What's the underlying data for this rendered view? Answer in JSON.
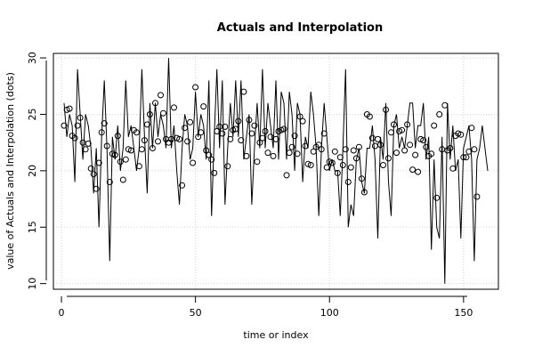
{
  "chart_data": {
    "type": "line",
    "title": "Actuals and Interpolation",
    "xlabel": "time or index",
    "ylabel": "value of Actuals and Interpolation (dots)",
    "xlim": [
      -3,
      163
    ],
    "ylim": [
      9.5,
      30.4
    ],
    "xticks": [
      0,
      50,
      100,
      150
    ],
    "yticks": [
      10,
      15,
      20,
      25,
      30
    ],
    "grid": true,
    "colors": {
      "line": "#000000",
      "points": "#000000",
      "grid": "#d3d3d3"
    },
    "series": [
      {
        "style": "line",
        "values": [
          26,
          23,
          25,
          24,
          19,
          29,
          25,
          21,
          25,
          24,
          22,
          18,
          22,
          15,
          23,
          28,
          22,
          12,
          23,
          21,
          24,
          20,
          22,
          28,
          23,
          24,
          22,
          20,
          22,
          29,
          23,
          18,
          26,
          22,
          26,
          23,
          25,
          24,
          22,
          30,
          22,
          24,
          20,
          17,
          22,
          25,
          24,
          21,
          22,
          27,
          23,
          25,
          24,
          21,
          28,
          16,
          23,
          29,
          22,
          28,
          17,
          22,
          26,
          23,
          28,
          23,
          28,
          21,
          23,
          25,
          17,
          22,
          26,
          22,
          29,
          22,
          26,
          24,
          22,
          28,
          21,
          27,
          26,
          21,
          27,
          25,
          20,
          26,
          25,
          19,
          23,
          22,
          27,
          25,
          22,
          16,
          22,
          26,
          23,
          20,
          21,
          20,
          20,
          16,
          22,
          29,
          15,
          17,
          16,
          21,
          22,
          19,
          18,
          22,
          22,
          24,
          21,
          14,
          23,
          21,
          26,
          19,
          16,
          24,
          25,
          22,
          23,
          22,
          24,
          26,
          26,
          22,
          24,
          24,
          26,
          21,
          23,
          13,
          21,
          15,
          14,
          23,
          10,
          26,
          21,
          24,
          20,
          21,
          14,
          22,
          23,
          24,
          21,
          12,
          21,
          22,
          24,
          22,
          20
        ]
      },
      {
        "style": "points",
        "values": [
          24.0,
          25.4,
          25.5,
          23.1,
          22.9,
          24.0,
          24.7,
          22.5,
          21.9,
          22.4,
          20.2,
          19.7,
          18.4,
          20.7,
          23.4,
          24.2,
          22.2,
          19.0,
          21.5,
          21.4,
          23.1,
          20.8,
          19.2,
          21.0,
          21.9,
          21.8,
          23.6,
          23.4,
          20.4,
          21.9,
          22.7,
          24.1,
          25.0,
          22.0,
          26.0,
          22.6,
          26.7,
          25.1,
          22.8,
          22.5,
          22.8,
          25.6,
          22.9,
          22.8,
          18.7,
          23.8,
          22.6,
          24.3,
          20.7,
          27.4,
          23.0,
          23.4,
          25.7,
          21.8,
          21.4,
          21.0,
          19.8,
          23.5,
          23.9,
          23.3,
          23.9,
          20.4,
          22.8,
          23.6,
          23.7,
          24.4,
          22.7,
          27.0,
          21.3,
          24.5,
          23.3,
          24.0,
          20.8,
          22.5,
          22.9,
          23.5,
          21.6,
          23.0,
          21.3,
          22.8,
          23.5,
          23.6,
          23.7,
          19.6,
          21.6,
          22.1,
          23.1,
          21.5,
          24.8,
          24.4,
          22.2,
          20.6,
          20.5,
          21.7,
          22.1,
          22.3,
          21.9,
          23.3,
          20.3,
          20.8,
          20.7,
          21.7,
          19.8,
          21.2,
          20.5,
          21.9,
          19.0,
          20.3,
          21.8,
          21.1,
          22.1,
          19.3,
          18.1,
          25.0,
          24.8,
          22.9,
          22.2,
          22.8,
          22.3,
          20.5,
          25.4,
          21.1,
          23.4,
          24.1,
          21.6,
          23.5,
          23.6,
          21.8,
          24.1,
          22.3,
          20.1,
          21.4,
          19.9,
          22.8,
          22.7,
          22.1,
          21.3,
          21.5,
          24.0,
          17.6,
          25.0,
          21.9,
          25.8,
          21.8,
          22.0,
          20.2,
          23.1,
          23.3,
          23.2,
          21.2,
          21.2,
          21.7,
          23.8,
          21.9,
          17.7
        ]
      }
    ]
  }
}
